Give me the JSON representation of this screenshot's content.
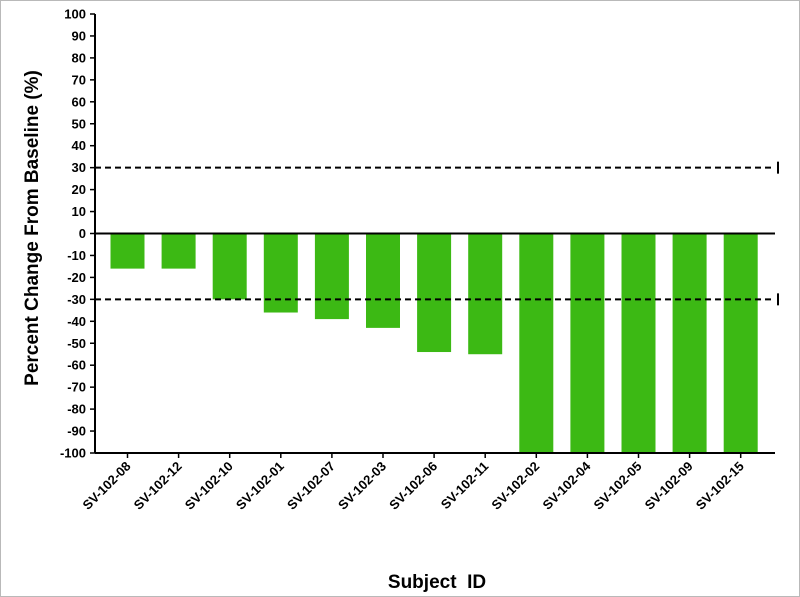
{
  "chart_data": {
    "type": "bar",
    "title": "",
    "xlabel": "Subject  ID",
    "ylabel": "Percent Change From Baseline (%)",
    "ylim": [
      -100,
      100
    ],
    "ytick_step": 10,
    "grid": false,
    "bar_color": "#3cb914",
    "categories": [
      "SV-102-08",
      "SV-102-12",
      "SV-102-10",
      "SV-102-01",
      "SV-102-07",
      "SV-102-03",
      "SV-102-06",
      "SV-102-11",
      "SV-102-02",
      "SV-102-04",
      "SV-102-05",
      "SV-102-09",
      "SV-102-15"
    ],
    "values": [
      -16,
      -16,
      -30,
      -36,
      -39,
      -43,
      -54,
      -55,
      -100,
      -100,
      -100,
      -100,
      -100
    ],
    "reference_lines": [
      30,
      -30
    ]
  }
}
